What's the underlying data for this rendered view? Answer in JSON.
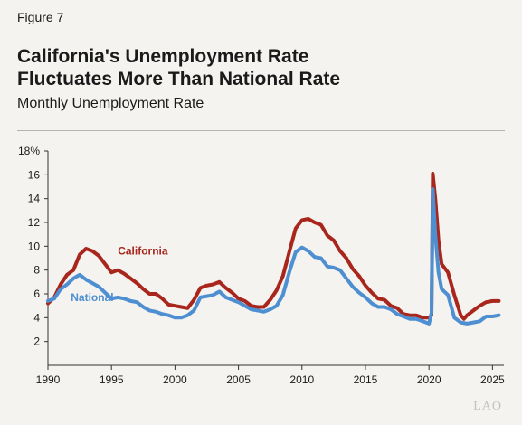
{
  "figure_label": "Figure 7",
  "title_lines": [
    "California's Unemployment Rate",
    "Fluctuates More Than National Rate"
  ],
  "subtitle": "Monthly Unemployment Rate",
  "watermark": "LAO",
  "chart_data": {
    "type": "line",
    "title": "California's Unemployment Rate Fluctuates More Than National Rate",
    "subtitle": "Monthly Unemployment Rate",
    "xlabel": "",
    "ylabel": "",
    "xlim": [
      1990,
      2025.9
    ],
    "ylim": [
      0,
      18
    ],
    "x_ticks": [
      1990,
      1995,
      2000,
      2005,
      2010,
      2015,
      2020,
      2025
    ],
    "y_ticks": [
      2,
      4,
      6,
      8,
      10,
      12,
      14,
      16,
      18
    ],
    "y_tick_labels": [
      "2",
      "4",
      "6",
      "8",
      "10",
      "12",
      "14",
      "16",
      "18%"
    ],
    "grid": false,
    "legend": "inline labels",
    "series": [
      {
        "name": "California",
        "color": "#a8261c",
        "label_x": 1995.5,
        "label_y": 9.3,
        "points": [
          [
            1990.0,
            5.2
          ],
          [
            1990.5,
            5.7
          ],
          [
            1991.0,
            6.8
          ],
          [
            1991.5,
            7.6
          ],
          [
            1992.0,
            8.0
          ],
          [
            1992.5,
            9.3
          ],
          [
            1993.0,
            9.8
          ],
          [
            1993.5,
            9.6
          ],
          [
            1994.0,
            9.2
          ],
          [
            1994.5,
            8.5
          ],
          [
            1995.0,
            7.8
          ],
          [
            1995.5,
            8.0
          ],
          [
            1996.0,
            7.7
          ],
          [
            1996.5,
            7.3
          ],
          [
            1997.0,
            6.9
          ],
          [
            1997.5,
            6.4
          ],
          [
            1998.0,
            6.0
          ],
          [
            1998.5,
            6.0
          ],
          [
            1999.0,
            5.6
          ],
          [
            1999.5,
            5.1
          ],
          [
            2000.0,
            5.0
          ],
          [
            2000.5,
            4.9
          ],
          [
            2001.0,
            4.8
          ],
          [
            2001.5,
            5.5
          ],
          [
            2002.0,
            6.5
          ],
          [
            2002.5,
            6.7
          ],
          [
            2003.0,
            6.8
          ],
          [
            2003.5,
            7.0
          ],
          [
            2004.0,
            6.5
          ],
          [
            2004.5,
            6.1
          ],
          [
            2005.0,
            5.6
          ],
          [
            2005.5,
            5.4
          ],
          [
            2006.0,
            5.0
          ],
          [
            2006.5,
            4.9
          ],
          [
            2007.0,
            4.9
          ],
          [
            2007.5,
            5.5
          ],
          [
            2008.0,
            6.3
          ],
          [
            2008.5,
            7.5
          ],
          [
            2009.0,
            9.5
          ],
          [
            2009.5,
            11.5
          ],
          [
            2010.0,
            12.2
          ],
          [
            2010.5,
            12.3
          ],
          [
            2011.0,
            12.0
          ],
          [
            2011.5,
            11.8
          ],
          [
            2012.0,
            10.9
          ],
          [
            2012.5,
            10.5
          ],
          [
            2013.0,
            9.6
          ],
          [
            2013.5,
            9.0
          ],
          [
            2014.0,
            8.1
          ],
          [
            2014.5,
            7.5
          ],
          [
            2015.0,
            6.7
          ],
          [
            2015.5,
            6.1
          ],
          [
            2016.0,
            5.6
          ],
          [
            2016.5,
            5.5
          ],
          [
            2017.0,
            5.0
          ],
          [
            2017.5,
            4.8
          ],
          [
            2018.0,
            4.3
          ],
          [
            2018.5,
            4.2
          ],
          [
            2019.0,
            4.2
          ],
          [
            2019.5,
            4.0
          ],
          [
            2020.0,
            4.0
          ],
          [
            2020.2,
            4.2
          ],
          [
            2020.3,
            16.1
          ],
          [
            2020.5,
            14.0
          ],
          [
            2020.75,
            10.5
          ],
          [
            2021.0,
            8.5
          ],
          [
            2021.5,
            7.8
          ],
          [
            2022.0,
            5.9
          ],
          [
            2022.5,
            4.2
          ],
          [
            2022.75,
            3.9
          ],
          [
            2023.0,
            4.2
          ],
          [
            2023.5,
            4.6
          ],
          [
            2024.0,
            5.0
          ],
          [
            2024.5,
            5.3
          ],
          [
            2025.0,
            5.4
          ],
          [
            2025.5,
            5.4
          ]
        ]
      },
      {
        "name": "National",
        "color": "#4e8fd1",
        "label_x": 1991.8,
        "label_y": 5.4,
        "points": [
          [
            1990.0,
            5.4
          ],
          [
            1990.5,
            5.6
          ],
          [
            1991.0,
            6.4
          ],
          [
            1991.5,
            6.8
          ],
          [
            1992.0,
            7.3
          ],
          [
            1992.5,
            7.6
          ],
          [
            1993.0,
            7.2
          ],
          [
            1993.5,
            6.9
          ],
          [
            1994.0,
            6.6
          ],
          [
            1994.5,
            6.1
          ],
          [
            1995.0,
            5.6
          ],
          [
            1995.5,
            5.7
          ],
          [
            1996.0,
            5.6
          ],
          [
            1996.5,
            5.4
          ],
          [
            1997.0,
            5.3
          ],
          [
            1997.5,
            4.9
          ],
          [
            1998.0,
            4.6
          ],
          [
            1998.5,
            4.5
          ],
          [
            1999.0,
            4.3
          ],
          [
            1999.5,
            4.2
          ],
          [
            2000.0,
            4.0
          ],
          [
            2000.5,
            4.0
          ],
          [
            2001.0,
            4.2
          ],
          [
            2001.5,
            4.6
          ],
          [
            2002.0,
            5.7
          ],
          [
            2002.5,
            5.8
          ],
          [
            2003.0,
            5.9
          ],
          [
            2003.5,
            6.2
          ],
          [
            2004.0,
            5.7
          ],
          [
            2004.5,
            5.5
          ],
          [
            2005.0,
            5.3
          ],
          [
            2005.5,
            5.0
          ],
          [
            2006.0,
            4.7
          ],
          [
            2006.5,
            4.6
          ],
          [
            2007.0,
            4.5
          ],
          [
            2007.5,
            4.7
          ],
          [
            2008.0,
            5.0
          ],
          [
            2008.5,
            5.9
          ],
          [
            2009.0,
            7.8
          ],
          [
            2009.5,
            9.5
          ],
          [
            2010.0,
            9.9
          ],
          [
            2010.5,
            9.6
          ],
          [
            2011.0,
            9.1
          ],
          [
            2011.5,
            9.0
          ],
          [
            2012.0,
            8.3
          ],
          [
            2012.5,
            8.2
          ],
          [
            2013.0,
            8.0
          ],
          [
            2013.5,
            7.3
          ],
          [
            2014.0,
            6.6
          ],
          [
            2014.5,
            6.1
          ],
          [
            2015.0,
            5.7
          ],
          [
            2015.5,
            5.2
          ],
          [
            2016.0,
            4.9
          ],
          [
            2016.5,
            4.9
          ],
          [
            2017.0,
            4.7
          ],
          [
            2017.5,
            4.3
          ],
          [
            2018.0,
            4.1
          ],
          [
            2018.5,
            3.9
          ],
          [
            2019.0,
            3.9
          ],
          [
            2019.5,
            3.7
          ],
          [
            2020.0,
            3.5
          ],
          [
            2020.2,
            4.4
          ],
          [
            2020.3,
            14.8
          ],
          [
            2020.5,
            11.0
          ],
          [
            2020.75,
            7.8
          ],
          [
            2021.0,
            6.4
          ],
          [
            2021.5,
            5.9
          ],
          [
            2022.0,
            4.0
          ],
          [
            2022.5,
            3.6
          ],
          [
            2023.0,
            3.5
          ],
          [
            2023.5,
            3.6
          ],
          [
            2024.0,
            3.7
          ],
          [
            2024.5,
            4.1
          ],
          [
            2025.0,
            4.1
          ],
          [
            2025.5,
            4.2
          ]
        ]
      }
    ]
  }
}
